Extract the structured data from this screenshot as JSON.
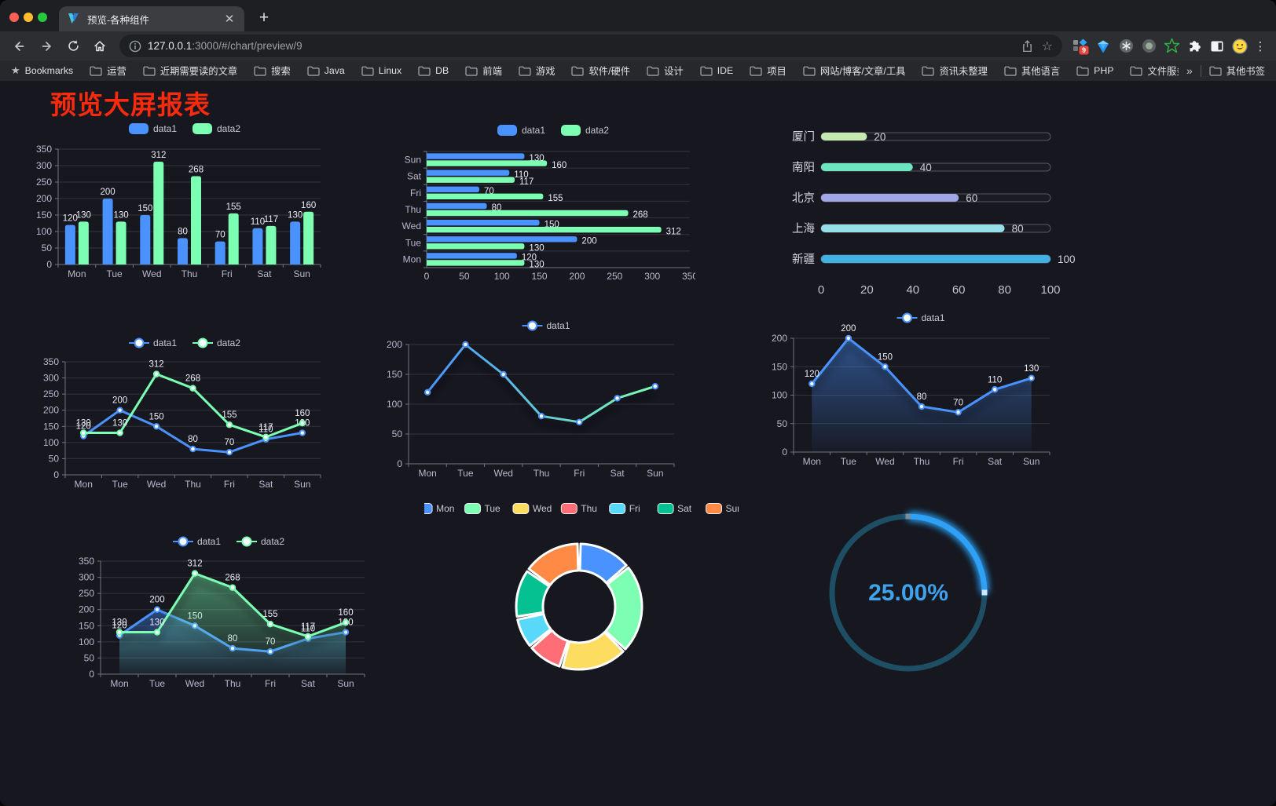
{
  "browser": {
    "tab_title": "预览-各种组件",
    "url_host": "127.0.0.1",
    "url_path": ":3000/#/chart/preview/9",
    "bookmarks_label": "Bookmarks",
    "bookmarks": [
      "运营",
      "近期需要读的文章",
      "搜索",
      "Java",
      "Linux",
      "DB",
      "前端",
      "游戏",
      "软件/硬件",
      "设计",
      "IDE",
      "项目",
      "网站/博客/文章/工具",
      "资讯未整理",
      "其他语言",
      "PHP",
      "文件服务器"
    ],
    "bookmarks_overflow": "»",
    "other_bookmarks": "其他书签",
    "extension_badge": "9"
  },
  "page": {
    "title": "预览大屏报表",
    "title_color": "#fa2a0d"
  },
  "chart_data": [
    {
      "id": "bar-grouped",
      "type": "bar",
      "categories": [
        "Mon",
        "Tue",
        "Wed",
        "Thu",
        "Fri",
        "Sat",
        "Sun"
      ],
      "series": [
        {
          "name": "data1",
          "color": "#4992ff",
          "values": [
            120,
            200,
            150,
            80,
            70,
            110,
            130
          ]
        },
        {
          "name": "data2",
          "color": "#7cffb2",
          "values": [
            130,
            130,
            312,
            268,
            155,
            117,
            160
          ]
        }
      ],
      "ylim": [
        0,
        350
      ],
      "ytick_step": 50,
      "legend_position": "top",
      "value_labels": true
    },
    {
      "id": "bar-horizontal",
      "type": "bar-horizontal",
      "categories": [
        "Mon",
        "Tue",
        "Wed",
        "Thu",
        "Fri",
        "Sat",
        "Sun"
      ],
      "category_order_top_to_bottom": [
        "Sun",
        "Sat",
        "Fri",
        "Thu",
        "Wed",
        "Tue",
        "Mon"
      ],
      "series": [
        {
          "name": "data1",
          "color": "#4992ff",
          "values": [
            120,
            200,
            150,
            80,
            70,
            110,
            130
          ]
        },
        {
          "name": "data2",
          "color": "#7cffb2",
          "values": [
            130,
            130,
            312,
            268,
            155,
            117,
            160
          ]
        }
      ],
      "xlim": [
        0,
        350
      ],
      "xtick_step": 50,
      "legend_position": "top",
      "value_labels": true
    },
    {
      "id": "progress-bars",
      "type": "progress",
      "max": 100,
      "xticks": [
        0,
        20,
        40,
        60,
        80,
        100
      ],
      "items": [
        {
          "label": "厦门",
          "value": 20,
          "color": "#c4ebad"
        },
        {
          "label": "南阳",
          "value": 40,
          "color": "#6be6c1"
        },
        {
          "label": "北京",
          "value": 60,
          "color": "#a0a7e6"
        },
        {
          "label": "上海",
          "value": 80,
          "color": "#96dee8"
        },
        {
          "label": "新疆",
          "value": 100,
          "color": "#3fb1e3"
        }
      ]
    },
    {
      "id": "line-two-series",
      "type": "line",
      "categories": [
        "Mon",
        "Tue",
        "Wed",
        "Thu",
        "Fri",
        "Sat",
        "Sun"
      ],
      "series": [
        {
          "name": "data1",
          "color": "#4992ff",
          "values": [
            120,
            200,
            150,
            80,
            70,
            110,
            130
          ],
          "labels": true
        },
        {
          "name": "data2",
          "color": "#7cffb2",
          "values": [
            130,
            130,
            312,
            268,
            155,
            117,
            160
          ],
          "labels": true
        }
      ],
      "ylim": [
        0,
        350
      ],
      "ytick_step": 50,
      "legend_position": "top"
    },
    {
      "id": "line-gradient",
      "type": "line",
      "categories": [
        "Mon",
        "Tue",
        "Wed",
        "Thu",
        "Fri",
        "Sat",
        "Sun"
      ],
      "series": [
        {
          "name": "data1",
          "gradient": [
            "#4992ff",
            "#7cffb2"
          ],
          "color": "#4992ff",
          "values": [
            120,
            200,
            150,
            80,
            70,
            110,
            130
          ],
          "labels": false,
          "shadow": true
        }
      ],
      "ylim": [
        0,
        200
      ],
      "ytick_step": 50,
      "legend_position": "top"
    },
    {
      "id": "line-area-single",
      "type": "line",
      "categories": [
        "Mon",
        "Tue",
        "Wed",
        "Thu",
        "Fri",
        "Sat",
        "Sun"
      ],
      "series": [
        {
          "name": "data1",
          "color": "#4992ff",
          "values": [
            120,
            200,
            150,
            80,
            70,
            110,
            130
          ],
          "labels": true,
          "area": true,
          "shadow": true
        }
      ],
      "ylim": [
        0,
        200
      ],
      "ytick_step": 50,
      "legend_position": "top"
    },
    {
      "id": "line-area-double",
      "type": "line",
      "categories": [
        "Mon",
        "Tue",
        "Wed",
        "Thu",
        "Fri",
        "Sat",
        "Sun"
      ],
      "series": [
        {
          "name": "data1",
          "color": "#4992ff",
          "values": [
            120,
            200,
            150,
            80,
            70,
            110,
            130
          ],
          "labels": true,
          "area": true,
          "shadow": true
        },
        {
          "name": "data2",
          "color": "#7cffb2",
          "values": [
            130,
            130,
            312,
            268,
            155,
            117,
            160
          ],
          "labels": true,
          "area": true,
          "shadow": true
        }
      ],
      "ylim": [
        0,
        350
      ],
      "ytick_step": 50,
      "legend_position": "top"
    },
    {
      "id": "donut",
      "type": "pie",
      "items": [
        {
          "name": "Mon",
          "value": 120,
          "color": "#4992ff"
        },
        {
          "name": "Tue",
          "value": 200,
          "color": "#7cffb2"
        },
        {
          "name": "Wed",
          "value": 150,
          "color": "#fddd60"
        },
        {
          "name": "Thu",
          "value": 80,
          "color": "#ff6e76"
        },
        {
          "name": "Fri",
          "value": 70,
          "color": "#58d9f9"
        },
        {
          "name": "Sat",
          "value": 110,
          "color": "#05c091"
        },
        {
          "name": "Sun",
          "value": 130,
          "color": "#ff8a45"
        }
      ],
      "legend_position": "top",
      "border_color": "#ffffff"
    },
    {
      "id": "gauge",
      "type": "gauge",
      "value_percent": 25,
      "display": "25.00%",
      "color": "#2da0f5",
      "track_color": "#1d4e63",
      "text_color": "#3fa2ec"
    }
  ]
}
